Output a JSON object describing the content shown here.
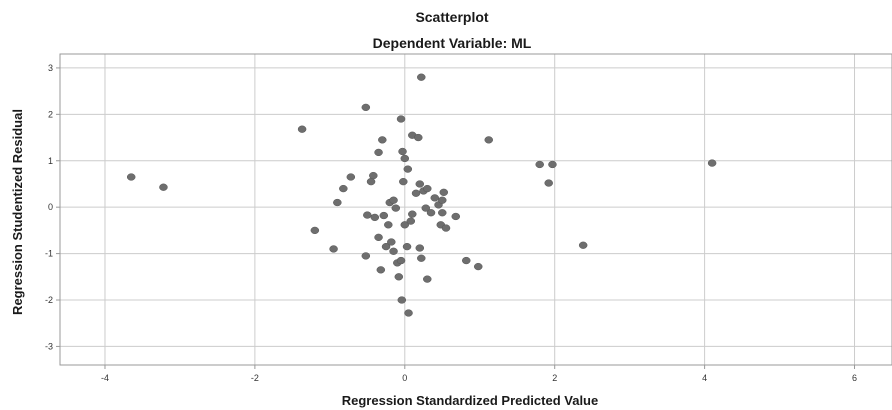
{
  "chart_data": {
    "type": "scatter",
    "title": "Scatterplot",
    "subtitle": "Dependent Variable: ML",
    "xlabel": "Regression Standardized Predicted Value",
    "ylabel": "Regression Studentized Residual",
    "xlim": [
      -4.6,
      6.5
    ],
    "ylim": [
      -3.4,
      3.3
    ],
    "xticks": [
      -4,
      -2,
      0,
      2,
      4,
      6
    ],
    "yticks": [
      -3,
      -2,
      -1,
      0,
      1,
      2,
      3
    ],
    "xtick_labels": [
      "-4",
      "-2",
      "0",
      "2",
      "4",
      "6"
    ],
    "ytick_labels": [
      "-3",
      "-2",
      "-1",
      "0",
      "1",
      "2",
      "3"
    ],
    "grid": true,
    "point_color": "#6e6e6e",
    "points": [
      {
        "x": -3.65,
        "y": 0.65
      },
      {
        "x": -3.22,
        "y": 0.43
      },
      {
        "x": -1.37,
        "y": 1.68
      },
      {
        "x": -1.2,
        "y": -0.5
      },
      {
        "x": -0.95,
        "y": -0.9
      },
      {
        "x": -0.9,
        "y": 0.1
      },
      {
        "x": -0.82,
        "y": 0.4
      },
      {
        "x": -0.72,
        "y": 0.65
      },
      {
        "x": -0.52,
        "y": 2.15
      },
      {
        "x": -0.52,
        "y": -1.05
      },
      {
        "x": -0.5,
        "y": -0.17
      },
      {
        "x": -0.45,
        "y": 0.55
      },
      {
        "x": -0.42,
        "y": 0.68
      },
      {
        "x": -0.4,
        "y": -0.22
      },
      {
        "x": -0.35,
        "y": 1.18
      },
      {
        "x": -0.35,
        "y": -0.65
      },
      {
        "x": -0.32,
        "y": -1.35
      },
      {
        "x": -0.3,
        "y": 1.45
      },
      {
        "x": -0.28,
        "y": -0.18
      },
      {
        "x": -0.25,
        "y": -0.85
      },
      {
        "x": -0.22,
        "y": -0.38
      },
      {
        "x": -0.2,
        "y": 0.1
      },
      {
        "x": -0.18,
        "y": -0.75
      },
      {
        "x": -0.15,
        "y": -0.95
      },
      {
        "x": -0.15,
        "y": 0.15
      },
      {
        "x": -0.12,
        "y": -0.02
      },
      {
        "x": -0.1,
        "y": -1.2
      },
      {
        "x": -0.08,
        "y": -1.5
      },
      {
        "x": -0.05,
        "y": -1.15
      },
      {
        "x": -0.05,
        "y": 1.9
      },
      {
        "x": -0.04,
        "y": -2.0
      },
      {
        "x": -0.03,
        "y": 1.2
      },
      {
        "x": -0.02,
        "y": 0.55
      },
      {
        "x": 0.0,
        "y": 1.05
      },
      {
        "x": 0.0,
        "y": -0.38
      },
      {
        "x": 0.03,
        "y": -0.85
      },
      {
        "x": 0.04,
        "y": 0.82
      },
      {
        "x": 0.05,
        "y": -2.28
      },
      {
        "x": 0.08,
        "y": -0.3
      },
      {
        "x": 0.1,
        "y": 1.55
      },
      {
        "x": 0.1,
        "y": -0.15
      },
      {
        "x": 0.15,
        "y": 0.3
      },
      {
        "x": 0.18,
        "y": 1.5
      },
      {
        "x": 0.2,
        "y": 0.5
      },
      {
        "x": 0.2,
        "y": -0.88
      },
      {
        "x": 0.22,
        "y": 2.8
      },
      {
        "x": 0.22,
        "y": -1.1
      },
      {
        "x": 0.25,
        "y": 0.35
      },
      {
        "x": 0.28,
        "y": -0.02
      },
      {
        "x": 0.3,
        "y": 0.4
      },
      {
        "x": 0.3,
        "y": -1.55
      },
      {
        "x": 0.35,
        "y": -0.12
      },
      {
        "x": 0.4,
        "y": 0.2
      },
      {
        "x": 0.45,
        "y": 0.05
      },
      {
        "x": 0.48,
        "y": -0.38
      },
      {
        "x": 0.5,
        "y": -0.12
      },
      {
        "x": 0.5,
        "y": 0.15
      },
      {
        "x": 0.52,
        "y": 0.32
      },
      {
        "x": 0.55,
        "y": -0.45
      },
      {
        "x": 0.68,
        "y": -0.2
      },
      {
        "x": 0.82,
        "y": -1.15
      },
      {
        "x": 0.98,
        "y": -1.28
      },
      {
        "x": 1.12,
        "y": 1.45
      },
      {
        "x": 1.8,
        "y": 0.92
      },
      {
        "x": 1.92,
        "y": 0.52
      },
      {
        "x": 1.97,
        "y": 0.92
      },
      {
        "x": 2.38,
        "y": -0.82
      },
      {
        "x": 4.1,
        "y": 0.95
      }
    ]
  }
}
